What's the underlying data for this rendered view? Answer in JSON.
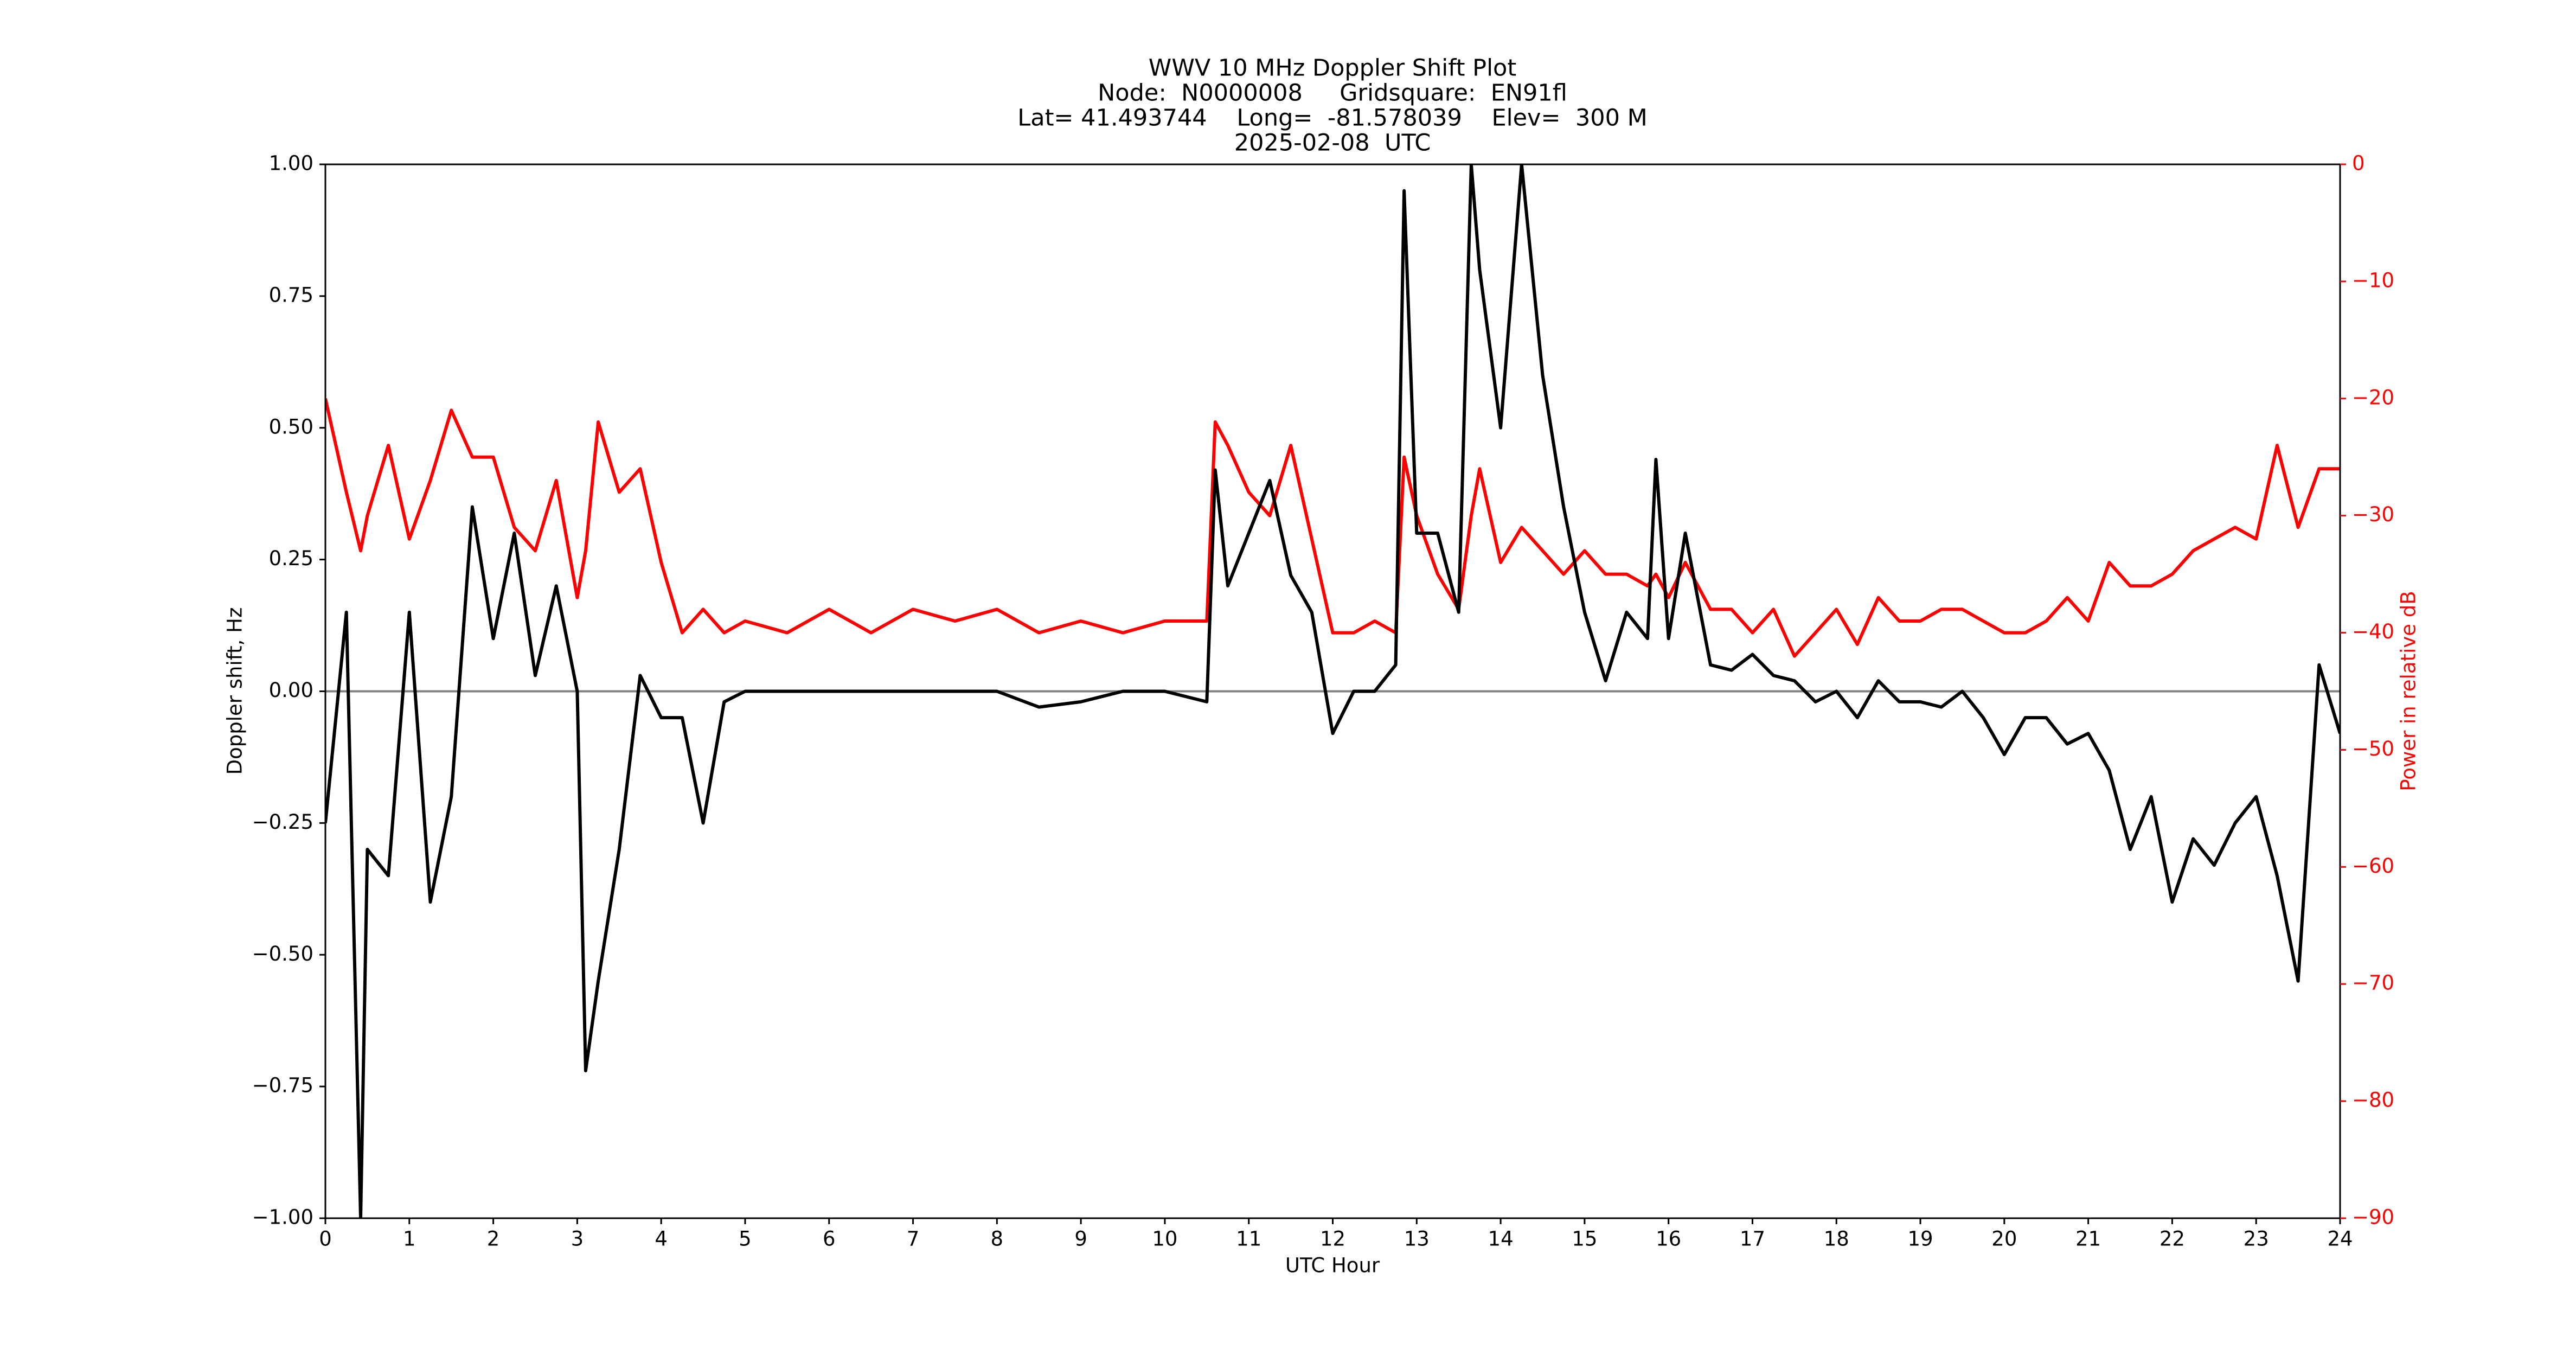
{
  "chart_data": {
    "type": "line",
    "title_lines": [
      "WWV 10 MHz Doppler Shift Plot",
      "Node:  N0000008     Gridsquare:  EN91fl",
      "Lat= 41.493744    Long=  -81.578039    Elev=  300 M",
      "2025-02-08  UTC"
    ],
    "xlabel": "UTC Hour",
    "ylabel": "Doppler shift, Hz",
    "y2label": "Power in relative dB",
    "y2color": "#ff0000",
    "reference_line": 0,
    "x": [
      0,
      0.25,
      0.42,
      0.5,
      0.75,
      1,
      1.25,
      1.5,
      1.75,
      2,
      2.25,
      2.5,
      2.75,
      3,
      3.1,
      3.25,
      3.5,
      3.75,
      4,
      4.25,
      4.5,
      4.75,
      5,
      5.5,
      6,
      6.5,
      7,
      7.5,
      8,
      8.5,
      9,
      9.5,
      10,
      10.5,
      10.6,
      10.75,
      11,
      11.25,
      11.5,
      11.75,
      12,
      12.25,
      12.5,
      12.75,
      12.85,
      13,
      13.25,
      13.5,
      13.65,
      13.75,
      14,
      14.25,
      14.5,
      14.75,
      15,
      15.25,
      15.5,
      15.75,
      15.85,
      16,
      16.2,
      16.5,
      16.75,
      17,
      17.25,
      17.5,
      17.75,
      18,
      18.25,
      18.5,
      18.75,
      19,
      19.25,
      19.5,
      19.75,
      20,
      20.25,
      20.5,
      20.75,
      21,
      21.25,
      21.5,
      21.75,
      22,
      22.25,
      22.5,
      22.75,
      23,
      23.25,
      23.5,
      23.75,
      24
    ],
    "series": [
      {
        "color": "#000000",
        "values": [
          -0.25,
          0.15,
          -1.0,
          -0.3,
          -0.35,
          0.15,
          -0.4,
          -0.2,
          0.35,
          0.1,
          0.3,
          0.03,
          0.2,
          0.0,
          -0.72,
          -0.55,
          -0.3,
          0.03,
          -0.05,
          -0.05,
          -0.25,
          -0.02,
          0,
          0,
          0,
          0,
          0,
          0,
          0,
          -0.03,
          -0.02,
          0,
          0,
          -0.02,
          0.42,
          0.2,
          0.3,
          0.4,
          0.22,
          0.15,
          -0.08,
          0,
          0,
          0.05,
          0.95,
          0.3,
          0.3,
          0.15,
          1.0,
          0.8,
          0.5,
          1.0,
          0.6,
          0.35,
          0.15,
          0.02,
          0.15,
          0.1,
          0.44,
          0.1,
          0.3,
          0.05,
          0.04,
          0.07,
          0.03,
          0.02,
          -0.02,
          0,
          -0.05,
          0.02,
          -0.02,
          -0.02,
          -0.03,
          0,
          -0.05,
          -0.12,
          -0.05,
          -0.05,
          -0.1,
          -0.08,
          -0.15,
          -0.3,
          -0.2,
          -0.4,
          -0.28,
          -0.33,
          -0.25,
          -0.2,
          -0.35,
          -0.55,
          0.05,
          -0.08
        ]
      },
      {
        "color": "#ff0000",
        "axis": "y2",
        "values": [
          -20,
          -28,
          -33,
          -30,
          -24,
          -32,
          -27,
          -21,
          -25,
          -25,
          -31,
          -33,
          -27,
          -37,
          -33,
          -22,
          -28,
          -26,
          -34,
          -40,
          -38,
          -40,
          -39,
          -40,
          -38,
          -40,
          -38,
          -39,
          -38,
          -40,
          -39,
          -40,
          -39,
          -39,
          -22,
          -24,
          -28,
          -30,
          -24,
          -32,
          -40,
          -40,
          -39,
          -40,
          -25,
          -30,
          -35,
          -38,
          -30,
          -26,
          -34,
          -31,
          -33,
          -35,
          -33,
          -35,
          -35,
          -36,
          -35,
          -37,
          -34,
          -38,
          -38,
          -40,
          -38,
          -42,
          -40,
          -38,
          -41,
          -37,
          -39,
          -39,
          -38,
          -38,
          -39,
          -40,
          -40,
          -39,
          -37,
          -39,
          -34,
          -36,
          -36,
          -35,
          -33,
          -32,
          -31,
          -32,
          -24,
          -31,
          -26,
          -26
        ]
      }
    ],
    "xlim": [
      0,
      24
    ],
    "xticks": [
      0,
      1,
      2,
      3,
      4,
      5,
      6,
      7,
      8,
      9,
      10,
      11,
      12,
      13,
      14,
      15,
      16,
      17,
      18,
      19,
      20,
      21,
      22,
      23,
      24
    ],
    "ylim": [
      -1,
      1
    ],
    "yticks": [
      {
        "value": -1,
        "label": "−1.00"
      },
      {
        "value": -0.75,
        "label": "−0.75"
      },
      {
        "value": -0.5,
        "label": "−0.50"
      },
      {
        "value": -0.25,
        "label": "−0.25"
      },
      {
        "value": 0,
        "label": "0.00"
      },
      {
        "value": 0.25,
        "label": "0.25"
      },
      {
        "value": 0.5,
        "label": "0.50"
      },
      {
        "value": 0.75,
        "label": "0.75"
      },
      {
        "value": 1,
        "label": "1.00"
      }
    ],
    "y2lim": [
      -90,
      0
    ],
    "y2ticks": [
      {
        "value": -90,
        "label": "−90"
      },
      {
        "value": -80,
        "label": "−80"
      },
      {
        "value": -70,
        "label": "−70"
      },
      {
        "value": -60,
        "label": "−60"
      },
      {
        "value": -50,
        "label": "−50"
      },
      {
        "value": -40,
        "label": "−40"
      },
      {
        "value": -30,
        "label": "−30"
      },
      {
        "value": -20,
        "label": "−20"
      },
      {
        "value": -10,
        "label": "−10"
      },
      0
    ]
  }
}
